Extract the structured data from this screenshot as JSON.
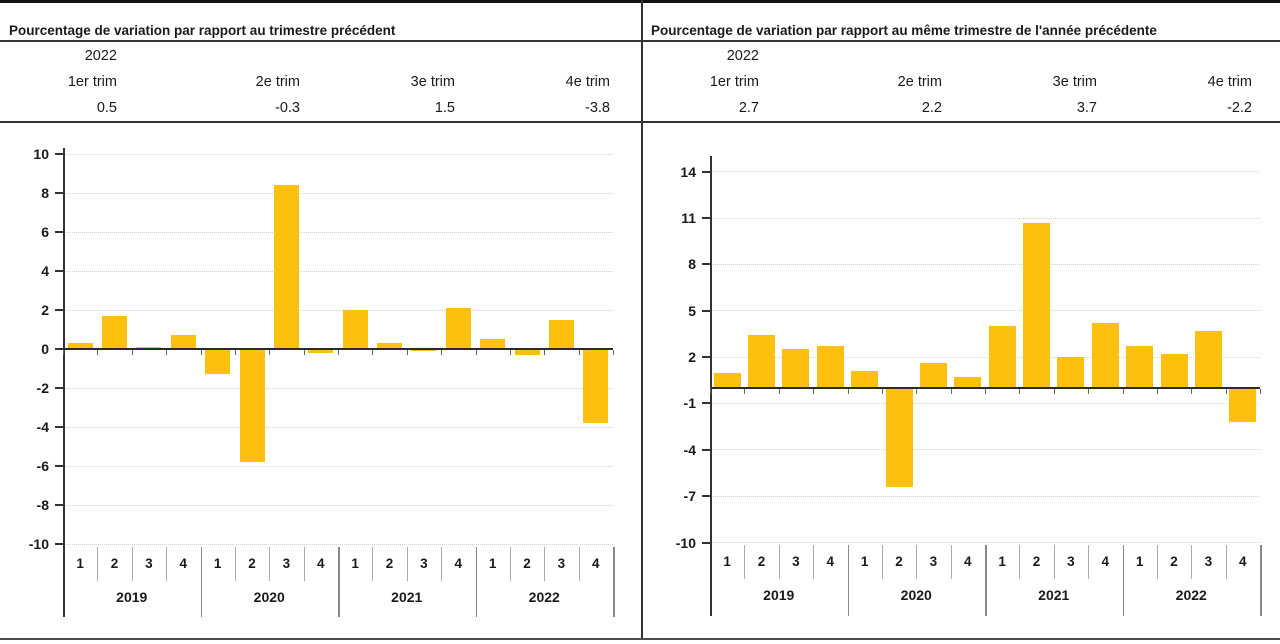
{
  "colors": {
    "bar": "#FDC00E",
    "axis": "#333333",
    "gridline": "#d2d2d2",
    "frame": "#111111"
  },
  "panels": [
    {
      "title": "Pourcentage de variation par rapport au trimestre précédent",
      "header": {
        "year": "2022",
        "quarters": [
          "1er trim",
          "2e trim",
          "3e trim",
          "4e trim"
        ],
        "values": [
          "0.5",
          "-0.3",
          "1.5",
          "-3.8"
        ]
      },
      "chart_data": {
        "type": "bar",
        "title": "Pourcentage de variation par rapport au trimestre précédent",
        "years": [
          "2019",
          "2020",
          "2021",
          "2022"
        ],
        "quarter_ticks": [
          "1",
          "2",
          "3",
          "4"
        ],
        "categories": [
          "2019 T1",
          "2019 T2",
          "2019 T3",
          "2019 T4",
          "2020 T1",
          "2020 T2",
          "2020 T3",
          "2020 T4",
          "2021 T1",
          "2021 T2",
          "2021 T3",
          "2021 T4",
          "2022 T1",
          "2022 T2",
          "2022 T3",
          "2022 T4"
        ],
        "values": [
          0.3,
          1.7,
          0.1,
          0.7,
          -1.3,
          -5.8,
          8.4,
          -0.2,
          2.0,
          0.3,
          -0.1,
          2.1,
          0.5,
          -0.3,
          1.5,
          -3.8
        ],
        "y_ticks": [
          10,
          8,
          6,
          4,
          2,
          0,
          -2,
          -4,
          -6,
          -8,
          -10
        ],
        "ylim": [
          -10,
          10
        ],
        "grid": true,
        "legend": "none"
      }
    },
    {
      "title": "Pourcentage de variation par rapport au même trimestre de l'année précédente",
      "header": {
        "year": "2022",
        "quarters": [
          "1er trim",
          "2e trim",
          "3e trim",
          "4e trim"
        ],
        "values": [
          "2.7",
          "2.2",
          "3.7",
          "-2.2"
        ]
      },
      "chart_data": {
        "type": "bar",
        "title": "Pourcentage de variation par rapport au même trimestre de l'année précédente",
        "years": [
          "2019",
          "2020",
          "2021",
          "2022"
        ],
        "quarter_ticks": [
          "1",
          "2",
          "3",
          "4"
        ],
        "categories": [
          "2019 T1",
          "2019 T2",
          "2019 T3",
          "2019 T4",
          "2020 T1",
          "2020 T2",
          "2020 T3",
          "2020 T4",
          "2021 T1",
          "2021 T2",
          "2021 T3",
          "2021 T4",
          "2022 T1",
          "2022 T2",
          "2022 T3",
          "2022 T4"
        ],
        "values": [
          1.0,
          3.4,
          2.5,
          2.7,
          1.1,
          -6.4,
          1.6,
          0.7,
          4.0,
          10.7,
          2.0,
          4.2,
          2.7,
          2.2,
          3.7,
          -2.2
        ],
        "y_ticks": [
          14,
          11,
          8,
          5,
          2,
          -1,
          -4,
          -7,
          -10
        ],
        "ylim": [
          -10,
          14
        ],
        "grid": true,
        "legend": "none"
      }
    }
  ]
}
